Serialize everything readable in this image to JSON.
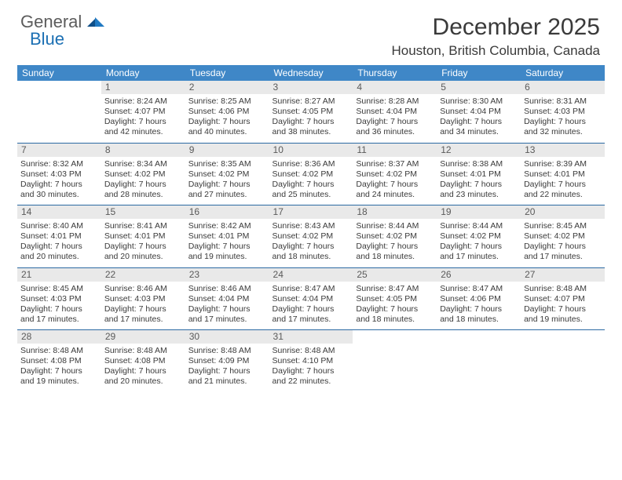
{
  "logo": {
    "general": "General",
    "blue": "Blue"
  },
  "header": {
    "month_year": "December 2025",
    "location": "Houston, British Columbia, Canada"
  },
  "colors": {
    "header_bg": "#3f87c7",
    "header_text": "#ffffff",
    "daynum_bg": "#e9e9e9",
    "row_border": "#2c6aa3",
    "text": "#3a3a3a",
    "logo_blue": "#1b6fb3",
    "logo_mark1": "#0f4f88",
    "logo_mark2": "#2079c2"
  },
  "weekday_headers": [
    "Sunday",
    "Monday",
    "Tuesday",
    "Wednesday",
    "Thursday",
    "Friday",
    "Saturday"
  ],
  "weeks": [
    [
      {
        "empty": true
      },
      {
        "n": "1",
        "l1": "Sunrise: 8:24 AM",
        "l2": "Sunset: 4:07 PM",
        "l3": "Daylight: 7 hours",
        "l4": "and 42 minutes."
      },
      {
        "n": "2",
        "l1": "Sunrise: 8:25 AM",
        "l2": "Sunset: 4:06 PM",
        "l3": "Daylight: 7 hours",
        "l4": "and 40 minutes."
      },
      {
        "n": "3",
        "l1": "Sunrise: 8:27 AM",
        "l2": "Sunset: 4:05 PM",
        "l3": "Daylight: 7 hours",
        "l4": "and 38 minutes."
      },
      {
        "n": "4",
        "l1": "Sunrise: 8:28 AM",
        "l2": "Sunset: 4:04 PM",
        "l3": "Daylight: 7 hours",
        "l4": "and 36 minutes."
      },
      {
        "n": "5",
        "l1": "Sunrise: 8:30 AM",
        "l2": "Sunset: 4:04 PM",
        "l3": "Daylight: 7 hours",
        "l4": "and 34 minutes."
      },
      {
        "n": "6",
        "l1": "Sunrise: 8:31 AM",
        "l2": "Sunset: 4:03 PM",
        "l3": "Daylight: 7 hours",
        "l4": "and 32 minutes."
      }
    ],
    [
      {
        "n": "7",
        "l1": "Sunrise: 8:32 AM",
        "l2": "Sunset: 4:03 PM",
        "l3": "Daylight: 7 hours",
        "l4": "and 30 minutes."
      },
      {
        "n": "8",
        "l1": "Sunrise: 8:34 AM",
        "l2": "Sunset: 4:02 PM",
        "l3": "Daylight: 7 hours",
        "l4": "and 28 minutes."
      },
      {
        "n": "9",
        "l1": "Sunrise: 8:35 AM",
        "l2": "Sunset: 4:02 PM",
        "l3": "Daylight: 7 hours",
        "l4": "and 27 minutes."
      },
      {
        "n": "10",
        "l1": "Sunrise: 8:36 AM",
        "l2": "Sunset: 4:02 PM",
        "l3": "Daylight: 7 hours",
        "l4": "and 25 minutes."
      },
      {
        "n": "11",
        "l1": "Sunrise: 8:37 AM",
        "l2": "Sunset: 4:02 PM",
        "l3": "Daylight: 7 hours",
        "l4": "and 24 minutes."
      },
      {
        "n": "12",
        "l1": "Sunrise: 8:38 AM",
        "l2": "Sunset: 4:01 PM",
        "l3": "Daylight: 7 hours",
        "l4": "and 23 minutes."
      },
      {
        "n": "13",
        "l1": "Sunrise: 8:39 AM",
        "l2": "Sunset: 4:01 PM",
        "l3": "Daylight: 7 hours",
        "l4": "and 22 minutes."
      }
    ],
    [
      {
        "n": "14",
        "l1": "Sunrise: 8:40 AM",
        "l2": "Sunset: 4:01 PM",
        "l3": "Daylight: 7 hours",
        "l4": "and 20 minutes."
      },
      {
        "n": "15",
        "l1": "Sunrise: 8:41 AM",
        "l2": "Sunset: 4:01 PM",
        "l3": "Daylight: 7 hours",
        "l4": "and 20 minutes."
      },
      {
        "n": "16",
        "l1": "Sunrise: 8:42 AM",
        "l2": "Sunset: 4:01 PM",
        "l3": "Daylight: 7 hours",
        "l4": "and 19 minutes."
      },
      {
        "n": "17",
        "l1": "Sunrise: 8:43 AM",
        "l2": "Sunset: 4:02 PM",
        "l3": "Daylight: 7 hours",
        "l4": "and 18 minutes."
      },
      {
        "n": "18",
        "l1": "Sunrise: 8:44 AM",
        "l2": "Sunset: 4:02 PM",
        "l3": "Daylight: 7 hours",
        "l4": "and 18 minutes."
      },
      {
        "n": "19",
        "l1": "Sunrise: 8:44 AM",
        "l2": "Sunset: 4:02 PM",
        "l3": "Daylight: 7 hours",
        "l4": "and 17 minutes."
      },
      {
        "n": "20",
        "l1": "Sunrise: 8:45 AM",
        "l2": "Sunset: 4:02 PM",
        "l3": "Daylight: 7 hours",
        "l4": "and 17 minutes."
      }
    ],
    [
      {
        "n": "21",
        "l1": "Sunrise: 8:45 AM",
        "l2": "Sunset: 4:03 PM",
        "l3": "Daylight: 7 hours",
        "l4": "and 17 minutes."
      },
      {
        "n": "22",
        "l1": "Sunrise: 8:46 AM",
        "l2": "Sunset: 4:03 PM",
        "l3": "Daylight: 7 hours",
        "l4": "and 17 minutes."
      },
      {
        "n": "23",
        "l1": "Sunrise: 8:46 AM",
        "l2": "Sunset: 4:04 PM",
        "l3": "Daylight: 7 hours",
        "l4": "and 17 minutes."
      },
      {
        "n": "24",
        "l1": "Sunrise: 8:47 AM",
        "l2": "Sunset: 4:04 PM",
        "l3": "Daylight: 7 hours",
        "l4": "and 17 minutes."
      },
      {
        "n": "25",
        "l1": "Sunrise: 8:47 AM",
        "l2": "Sunset: 4:05 PM",
        "l3": "Daylight: 7 hours",
        "l4": "and 18 minutes."
      },
      {
        "n": "26",
        "l1": "Sunrise: 8:47 AM",
        "l2": "Sunset: 4:06 PM",
        "l3": "Daylight: 7 hours",
        "l4": "and 18 minutes."
      },
      {
        "n": "27",
        "l1": "Sunrise: 8:48 AM",
        "l2": "Sunset: 4:07 PM",
        "l3": "Daylight: 7 hours",
        "l4": "and 19 minutes."
      }
    ],
    [
      {
        "n": "28",
        "l1": "Sunrise: 8:48 AM",
        "l2": "Sunset: 4:08 PM",
        "l3": "Daylight: 7 hours",
        "l4": "and 19 minutes."
      },
      {
        "n": "29",
        "l1": "Sunrise: 8:48 AM",
        "l2": "Sunset: 4:08 PM",
        "l3": "Daylight: 7 hours",
        "l4": "and 20 minutes."
      },
      {
        "n": "30",
        "l1": "Sunrise: 8:48 AM",
        "l2": "Sunset: 4:09 PM",
        "l3": "Daylight: 7 hours",
        "l4": "and 21 minutes."
      },
      {
        "n": "31",
        "l1": "Sunrise: 8:48 AM",
        "l2": "Sunset: 4:10 PM",
        "l3": "Daylight: 7 hours",
        "l4": "and 22 minutes."
      },
      {
        "empty": true
      },
      {
        "empty": true
      },
      {
        "empty": true
      }
    ]
  ]
}
